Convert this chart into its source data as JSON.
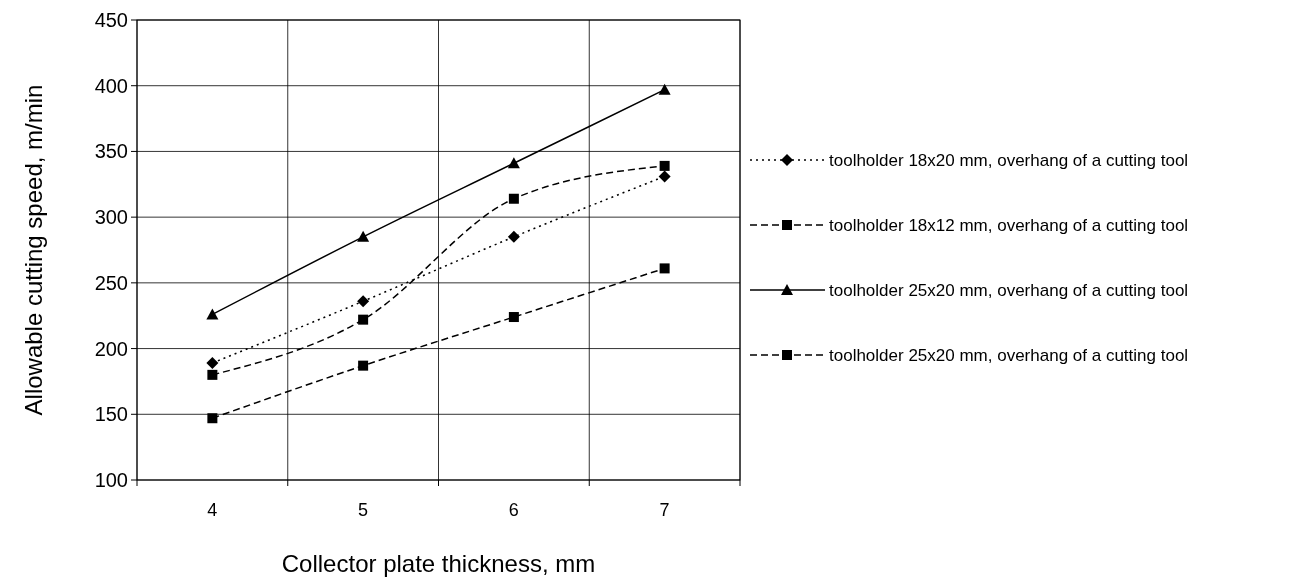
{
  "chart_data": {
    "type": "line",
    "xlabel": "Collector plate thickness, mm",
    "ylabel": "Allowable cutting  speed, m/min",
    "categories": [
      "4",
      "5",
      "6",
      "7"
    ],
    "ylim": [
      100,
      450
    ],
    "yticks": [
      100,
      150,
      200,
      250,
      300,
      350,
      400,
      450
    ],
    "grid": true,
    "legend": "right",
    "series": [
      {
        "name": "toolholder 18x20 mm, overhang of a cutting tool",
        "color": "#000000",
        "values": [
          189,
          236,
          285,
          331
        ],
        "marker": "diamond",
        "line_style": "dotted"
      },
      {
        "name": "toolholder 18x12 mm, overhang of a cutting tool",
        "color": "#000000",
        "values": [
          147,
          187,
          224,
          261
        ],
        "marker": "square",
        "line_style": "dashed"
      },
      {
        "name": "toolholder 25x20 mm, overhang of a cutting tool",
        "color": "#000000",
        "values": [
          226,
          285,
          341,
          397
        ],
        "marker": "triangle",
        "line_style": "solid"
      },
      {
        "name": "toolholder 25x20 mm, overhang of a cutting tool",
        "color": "#000000",
        "values": [
          180,
          222,
          314,
          339
        ],
        "marker": "square",
        "line_style": "dashed"
      }
    ]
  }
}
